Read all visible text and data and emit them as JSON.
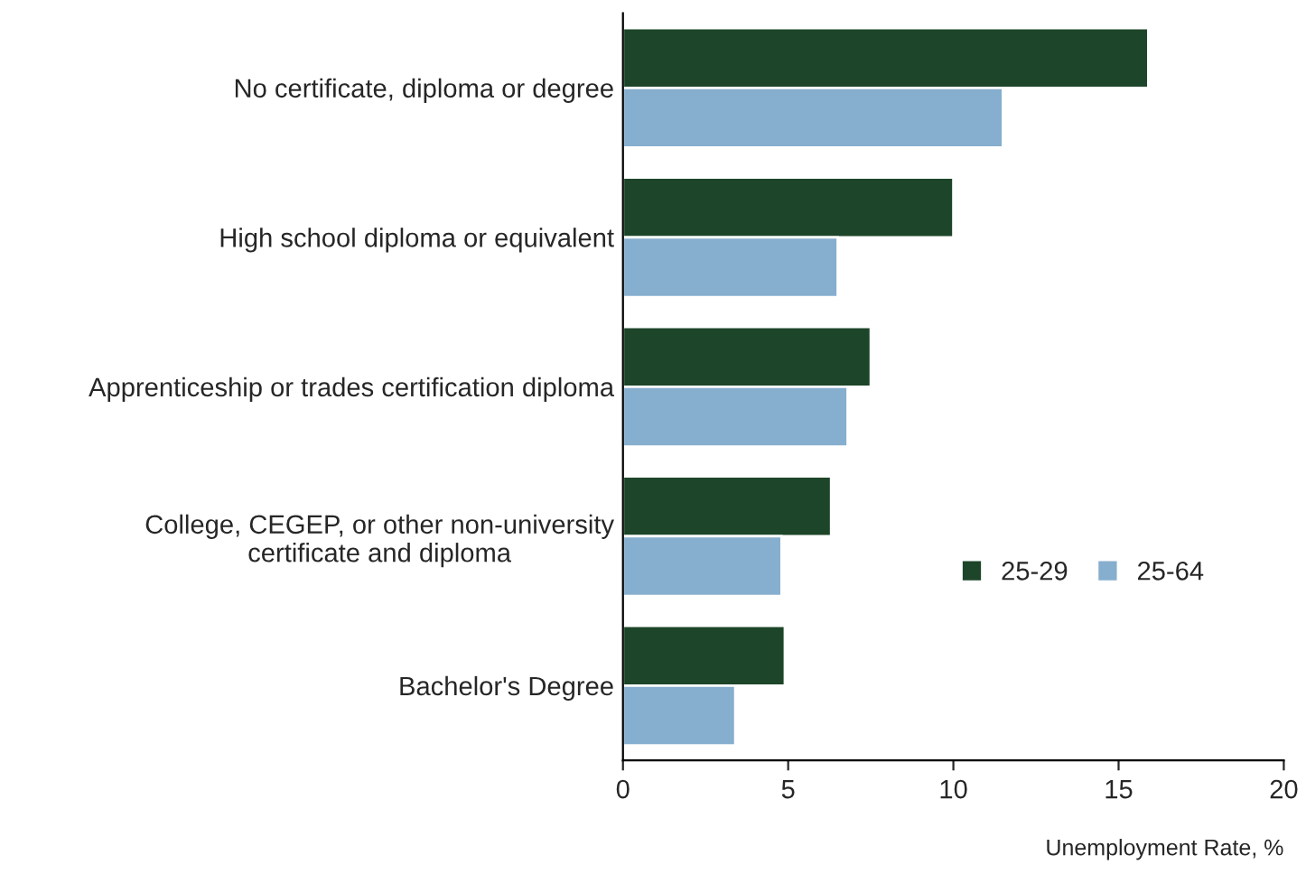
{
  "chart_data": {
    "type": "bar",
    "orientation": "horizontal",
    "xlabel": "Unemployment Rate, %",
    "categories": [
      "No certificate, diploma or degree",
      "High school diploma or equivalent",
      "Apprenticeship or trades certification diploma",
      "College, CEGEP, or other non-university\ncertificate and diploma",
      "Bachelor's Degree"
    ],
    "series": [
      {
        "name": "25-29",
        "color": "#1d4529",
        "values": [
          15.9,
          10.0,
          7.5,
          6.3,
          4.9
        ]
      },
      {
        "name": "25-64",
        "color": "#86aece",
        "values": [
          11.5,
          6.5,
          6.8,
          4.8,
          3.4
        ]
      }
    ],
    "xlim": [
      0,
      20
    ],
    "xticks": [
      0,
      5,
      10,
      15,
      20
    ],
    "grid": false,
    "legend": "bottom right"
  }
}
